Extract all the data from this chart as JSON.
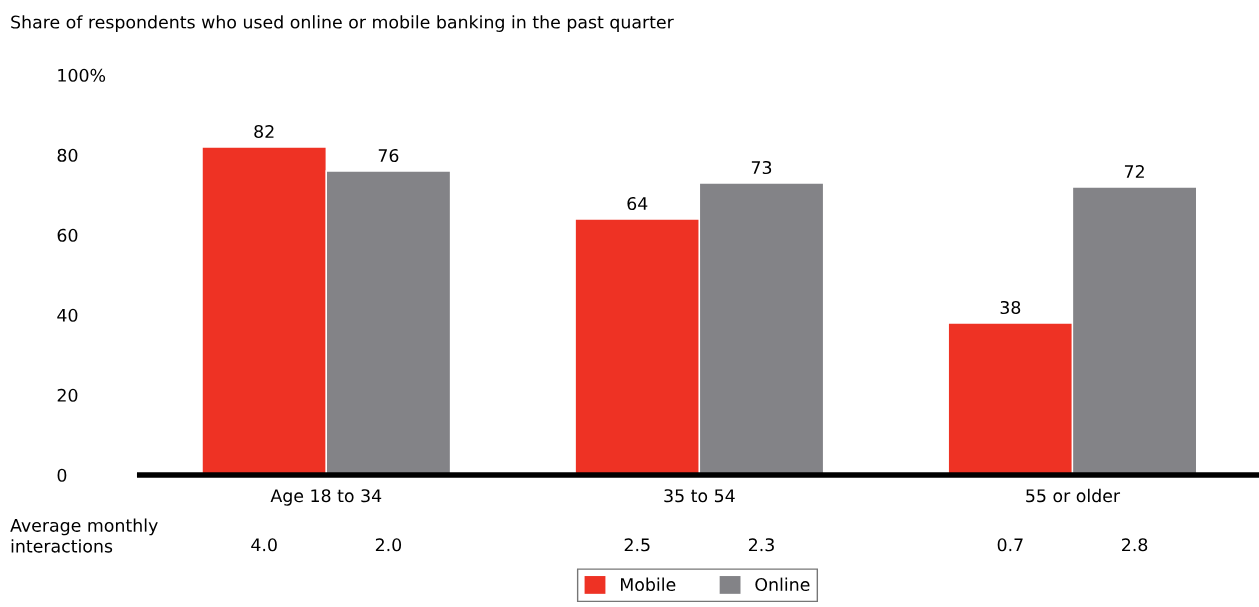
{
  "chart_data": {
    "type": "bar",
    "title": "Share of respondents who used online or mobile banking in the past quarter",
    "categories": [
      "Age 18 to 34",
      "35 to 54",
      "55 or older"
    ],
    "series": [
      {
        "name": "Mobile",
        "color": "#ee3224",
        "values": [
          82,
          64,
          38
        ]
      },
      {
        "name": "Online",
        "color": "#838387",
        "values": [
          76,
          73,
          72
        ]
      }
    ],
    "ylim": [
      0,
      100
    ],
    "yticks": [
      0,
      20,
      40,
      60,
      80,
      {
        "value": 100,
        "label": "100%"
      }
    ],
    "data_labels": true,
    "grid": false,
    "legend": "bottom",
    "annotations": [
      "Average monthly\ninteractions",
      "4.0",
      "2.0",
      "2.5",
      "2.3",
      "0.7",
      "2.8"
    ]
  }
}
